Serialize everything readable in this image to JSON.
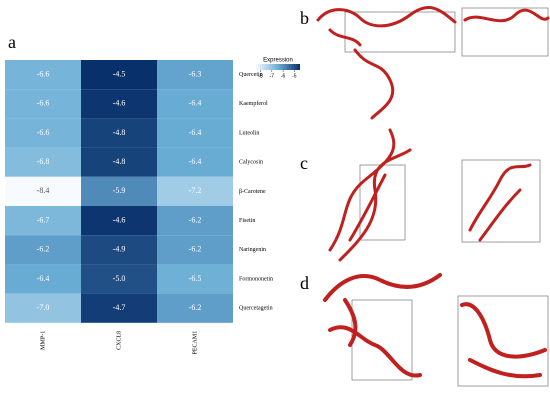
{
  "chart_data": {
    "type": "heatmap",
    "columns": [
      "MMP-1",
      "CXCL8",
      "PECAM1"
    ],
    "rows": [
      "Quercetin",
      "Kaempferol",
      "Luteolin",
      "Calycosin",
      "β-Carotene",
      "Fisetin",
      "Naringenin",
      "Formononetin",
      "Quercetagetin"
    ],
    "values": [
      [
        -6.6,
        -4.5,
        -6.3
      ],
      [
        -6.6,
        -4.6,
        -6.4
      ],
      [
        -6.6,
        -4.8,
        -6.4
      ],
      [
        -6.8,
        -4.8,
        -6.4
      ],
      [
        -8.4,
        -5.9,
        -7.2
      ],
      [
        -6.7,
        -4.6,
        -6.2
      ],
      [
        -6.2,
        -4.9,
        -6.2
      ],
      [
        -6.4,
        -5.0,
        -6.5
      ],
      [
        -7.0,
        -4.7,
        -6.2
      ]
    ],
    "value_labels": [
      [
        "-6.6",
        "-4.5",
        "-6.3"
      ],
      [
        "-6.6",
        "-4.6",
        "-6.4"
      ],
      [
        "-6.6",
        "-4.8",
        "-6.4"
      ],
      [
        "-6.8",
        "-4.8",
        "-6.4"
      ],
      [
        "-8.4",
        "-5.9",
        "-7.2"
      ],
      [
        "-6.7",
        "-4.6",
        "-6.2"
      ],
      [
        "-6.2",
        "-4.9",
        "-6.2"
      ],
      [
        "-6.4",
        "-5.0",
        "-6.5"
      ],
      [
        "-7.0",
        "-4.7",
        "-6.2"
      ]
    ],
    "zlim": [
      -8.4,
      -4.5
    ],
    "colors": [
      "#f7fbff",
      "#6baed6",
      "#08306b"
    ],
    "colorbar": {
      "title": "Expression",
      "ticks": [
        -8,
        -7,
        -6,
        -5
      ]
    }
  },
  "panel_labels": [
    "a",
    "b",
    "c",
    "d"
  ]
}
